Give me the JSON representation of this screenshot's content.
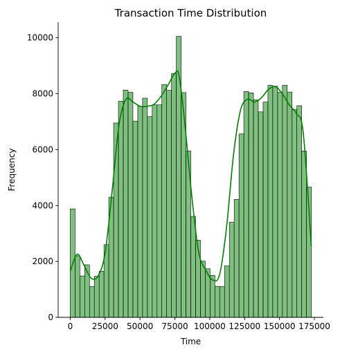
{
  "chart_data": {
    "type": "bar",
    "title": "Transaction Time Distribution",
    "xlabel": "Time",
    "ylabel": "Frequency",
    "xlim": [
      -8640,
      181440
    ],
    "ylim": [
      0,
      10560
    ],
    "x_ticks": [
      0,
      25000,
      50000,
      75000,
      100000,
      125000,
      150000,
      175000
    ],
    "x_tick_labels": [
      "0",
      "25000",
      "50000",
      "75000",
      "100000",
      "125000",
      "150000",
      "175000"
    ],
    "y_ticks": [
      0,
      2000,
      4000,
      6000,
      8000,
      10000
    ],
    "y_tick_labels": [
      "0",
      "2000",
      "4000",
      "6000",
      "8000",
      "10000"
    ],
    "bin_width": 3456,
    "bin_start": 0,
    "values": [
      3880,
      2200,
      1480,
      1880,
      1100,
      1470,
      1650,
      2600,
      4300,
      6950,
      7730,
      8130,
      8050,
      7020,
      7550,
      7840,
      7180,
      7600,
      7600,
      8330,
      8120,
      8720,
      10050,
      8040,
      5950,
      3610,
      2760,
      2010,
      1740,
      1500,
      1110,
      1100,
      1840,
      3400,
      4220,
      6560,
      8080,
      8030,
      7780,
      7350,
      7700,
      8300,
      8270,
      8050,
      8300,
      8060,
      7430,
      7570,
      5950,
      4660
    ],
    "kde": {
      "name": "",
      "color": "#008000",
      "x": [
        0,
        5000,
        10000,
        15000,
        20000,
        25000,
        30000,
        35000,
        40000,
        45000,
        50000,
        55000,
        60000,
        65000,
        70000,
        75000,
        78000,
        82000,
        87000,
        92000,
        97000,
        102000,
        107000,
        112000,
        117000,
        122000,
        127000,
        132000,
        137000,
        142000,
        147000,
        152000,
        157000,
        162000,
        167000,
        172800
      ],
      "y": [
        1650,
        2260,
        1850,
        1400,
        1480,
        2300,
        4500,
        6900,
        7800,
        7700,
        7550,
        7550,
        7620,
        7900,
        8300,
        8730,
        8650,
        7000,
        4400,
        2350,
        1700,
        1340,
        1520,
        3200,
        5800,
        7400,
        7800,
        7700,
        7850,
        8150,
        8250,
        8000,
        7600,
        7300,
        6600,
        2550
      ]
    },
    "bar_color": "#008000",
    "bar_fill_opacity": 0.5,
    "grid": false,
    "legend": "none"
  }
}
